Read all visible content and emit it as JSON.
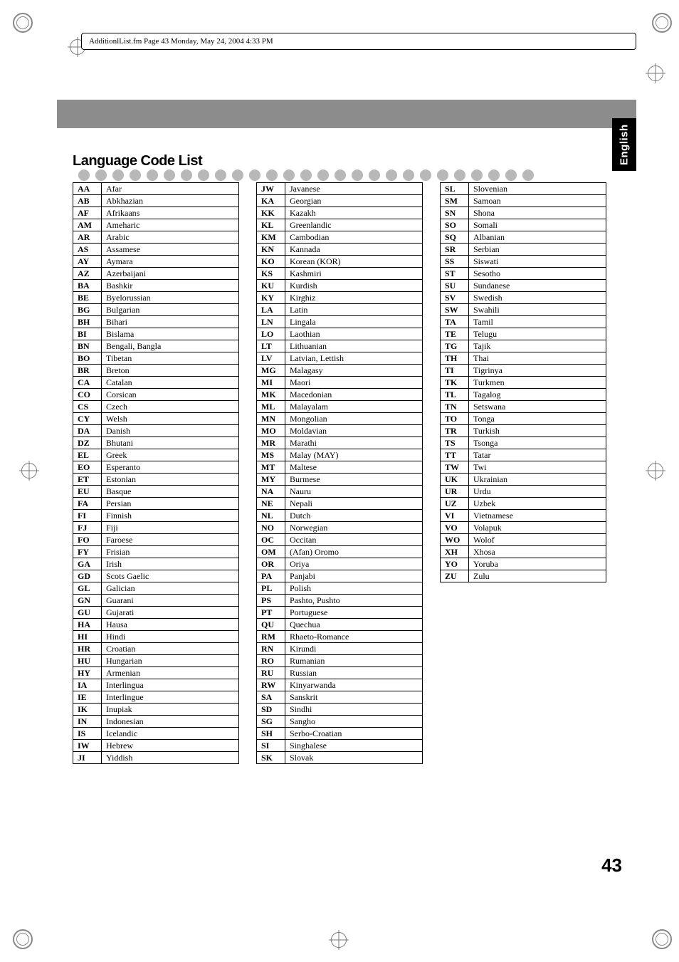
{
  "header": {
    "path_text": "AdditionlList.fm  Page 43  Monday, May 24, 2004  4:33 PM"
  },
  "tab": {
    "label": "English"
  },
  "section": {
    "title": "Language Code List",
    "dot_color": "#b8b8b8",
    "dot_count": 27
  },
  "page_number": "43",
  "tables": {
    "col1": [
      [
        "AA",
        "Afar"
      ],
      [
        "AB",
        "Abkhazian"
      ],
      [
        "AF",
        "Afrikaans"
      ],
      [
        "AM",
        "Ameharic"
      ],
      [
        "AR",
        "Arabic"
      ],
      [
        "AS",
        "Assamese"
      ],
      [
        "AY",
        "Aymara"
      ],
      [
        "AZ",
        "Azerbaijani"
      ],
      [
        "BA",
        "Bashkir"
      ],
      [
        "BE",
        "Byelorussian"
      ],
      [
        "BG",
        "Bulgarian"
      ],
      [
        "BH",
        "Bihari"
      ],
      [
        "BI",
        "Bislama"
      ],
      [
        "BN",
        "Bengali, Bangla"
      ],
      [
        "BO",
        "Tibetan"
      ],
      [
        "BR",
        "Breton"
      ],
      [
        "CA",
        "Catalan"
      ],
      [
        "CO",
        "Corsican"
      ],
      [
        "CS",
        "Czech"
      ],
      [
        "CY",
        "Welsh"
      ],
      [
        "DA",
        "Danish"
      ],
      [
        "DZ",
        "Bhutani"
      ],
      [
        "EL",
        "Greek"
      ],
      [
        "EO",
        "Esperanto"
      ],
      [
        "ET",
        "Estonian"
      ],
      [
        "EU",
        "Basque"
      ],
      [
        "FA",
        "Persian"
      ],
      [
        "FI",
        "Finnish"
      ],
      [
        "FJ",
        "Fiji"
      ],
      [
        "FO",
        "Faroese"
      ],
      [
        "FY",
        "Frisian"
      ],
      [
        "GA",
        "Irish"
      ],
      [
        "GD",
        "Scots Gaelic"
      ],
      [
        "GL",
        "Galician"
      ],
      [
        "GN",
        "Guarani"
      ],
      [
        "GU",
        "Gujarati"
      ],
      [
        "HA",
        "Hausa"
      ],
      [
        "HI",
        "Hindi"
      ],
      [
        "HR",
        "Croatian"
      ],
      [
        "HU",
        "Hungarian"
      ],
      [
        "HY",
        "Armenian"
      ],
      [
        "IA",
        "Interlingua"
      ],
      [
        "IE",
        "Interlingue"
      ],
      [
        "IK",
        "Inupiak"
      ],
      [
        "IN",
        "Indonesian"
      ],
      [
        "IS",
        "Icelandic"
      ],
      [
        "IW",
        "Hebrew"
      ],
      [
        "JI",
        "Yiddish"
      ]
    ],
    "col2": [
      [
        "JW",
        "Javanese"
      ],
      [
        "KA",
        "Georgian"
      ],
      [
        "KK",
        "Kazakh"
      ],
      [
        "KL",
        "Greenlandic"
      ],
      [
        "KM",
        "Cambodian"
      ],
      [
        "KN",
        "Kannada"
      ],
      [
        "KO",
        "Korean (KOR)"
      ],
      [
        "KS",
        "Kashmiri"
      ],
      [
        "KU",
        "Kurdish"
      ],
      [
        "KY",
        "Kirghiz"
      ],
      [
        "LA",
        "Latin"
      ],
      [
        "LN",
        "Lingala"
      ],
      [
        "LO",
        "Laothian"
      ],
      [
        "LT",
        "Lithuanian"
      ],
      [
        "LV",
        "Latvian, Lettish"
      ],
      [
        "MG",
        "Malagasy"
      ],
      [
        "MI",
        "Maori"
      ],
      [
        "MK",
        "Macedonian"
      ],
      [
        "ML",
        "Malayalam"
      ],
      [
        "MN",
        "Mongolian"
      ],
      [
        "MO",
        "Moldavian"
      ],
      [
        "MR",
        "Marathi"
      ],
      [
        "MS",
        "Malay (MAY)"
      ],
      [
        "MT",
        "Maltese"
      ],
      [
        "MY",
        "Burmese"
      ],
      [
        "NA",
        "Nauru"
      ],
      [
        "NE",
        "Nepali"
      ],
      [
        "NL",
        "Dutch"
      ],
      [
        "NO",
        "Norwegian"
      ],
      [
        "OC",
        "Occitan"
      ],
      [
        "OM",
        "(Afan) Oromo"
      ],
      [
        "OR",
        "Oriya"
      ],
      [
        "PA",
        "Panjabi"
      ],
      [
        "PL",
        "Polish"
      ],
      [
        "PS",
        "Pashto, Pushto"
      ],
      [
        "PT",
        "Portuguese"
      ],
      [
        "QU",
        "Quechua"
      ],
      [
        "RM",
        "Rhaeto-Romance"
      ],
      [
        "RN",
        "Kirundi"
      ],
      [
        "RO",
        "Rumanian"
      ],
      [
        "RU",
        "Russian"
      ],
      [
        "RW",
        "Kinyarwanda"
      ],
      [
        "SA",
        "Sanskrit"
      ],
      [
        "SD",
        "Sindhi"
      ],
      [
        "SG",
        "Sangho"
      ],
      [
        "SH",
        "Serbo-Croatian"
      ],
      [
        "SI",
        "Singhalese"
      ],
      [
        "SK",
        "Slovak"
      ]
    ],
    "col3": [
      [
        "SL",
        "Slovenian"
      ],
      [
        "SM",
        "Samoan"
      ],
      [
        "SN",
        "Shona"
      ],
      [
        "SO",
        "Somali"
      ],
      [
        "SQ",
        "Albanian"
      ],
      [
        "SR",
        "Serbian"
      ],
      [
        "SS",
        "Siswati"
      ],
      [
        "ST",
        "Sesotho"
      ],
      [
        "SU",
        "Sundanese"
      ],
      [
        "SV",
        "Swedish"
      ],
      [
        "SW",
        "Swahili"
      ],
      [
        "TA",
        "Tamil"
      ],
      [
        "TE",
        "Telugu"
      ],
      [
        "TG",
        "Tajik"
      ],
      [
        "TH",
        "Thai"
      ],
      [
        "TI",
        "Tigrinya"
      ],
      [
        "TK",
        "Turkmen"
      ],
      [
        "TL",
        "Tagalog"
      ],
      [
        "TN",
        "Setswana"
      ],
      [
        "TO",
        "Tonga"
      ],
      [
        "TR",
        "Turkish"
      ],
      [
        "TS",
        "Tsonga"
      ],
      [
        "TT",
        "Tatar"
      ],
      [
        "TW",
        "Twi"
      ],
      [
        "UK",
        "Ukrainian"
      ],
      [
        "UR",
        "Urdu"
      ],
      [
        "UZ",
        "Uzbek"
      ],
      [
        "VI",
        "Vietnamese"
      ],
      [
        "VO",
        "Volapuk"
      ],
      [
        "WO",
        "Wolof"
      ],
      [
        "XH",
        "Xhosa"
      ],
      [
        "YO",
        "Yoruba"
      ],
      [
        "ZU",
        "Zulu"
      ]
    ]
  },
  "styling": {
    "table_font_size_pt": 9,
    "title_strip_color": "#8c8c8c",
    "tab_bg": "#000000",
    "tab_fg": "#ffffff",
    "border_color": "#000000",
    "page_bg": "#ffffff"
  }
}
